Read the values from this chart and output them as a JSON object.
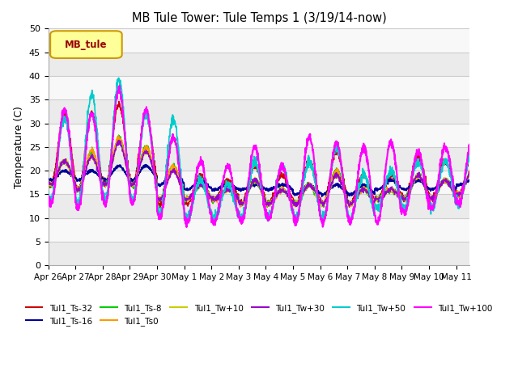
{
  "title": "MB Tule Tower: Tule Temps 1 (3/19/14-now)",
  "ylabel": "Temperature (C)",
  "ylim": [
    0,
    50
  ],
  "yticks": [
    0,
    5,
    10,
    15,
    20,
    25,
    30,
    35,
    40,
    45,
    50
  ],
  "xlabel_dates": [
    "Apr 26",
    "Apr 27",
    "Apr 28",
    "Apr 29",
    "Apr 30",
    "May 1",
    "May 2",
    "May 3",
    "May 4",
    "May 5",
    "May 6",
    "May 7",
    "May 8",
    "May 9",
    "May 10",
    "May 11"
  ],
  "legend_label": "MB_tule",
  "series_labels": [
    "Tul1_Ts-32",
    "Tul1_Ts-16",
    "Tul1_Ts-8",
    "Tul1_Ts0",
    "Tul1_Tw+10",
    "Tul1_Tw+30",
    "Tul1_Tw+50",
    "Tul1_Tw+100"
  ],
  "series_colors": [
    "#cc0000",
    "#000099",
    "#00cc00",
    "#ff9900",
    "#cccc00",
    "#9900cc",
    "#00cccc",
    "#ff00ff"
  ],
  "background_color": "#ffffff",
  "n_days": 15.5,
  "points_per_day": 144
}
